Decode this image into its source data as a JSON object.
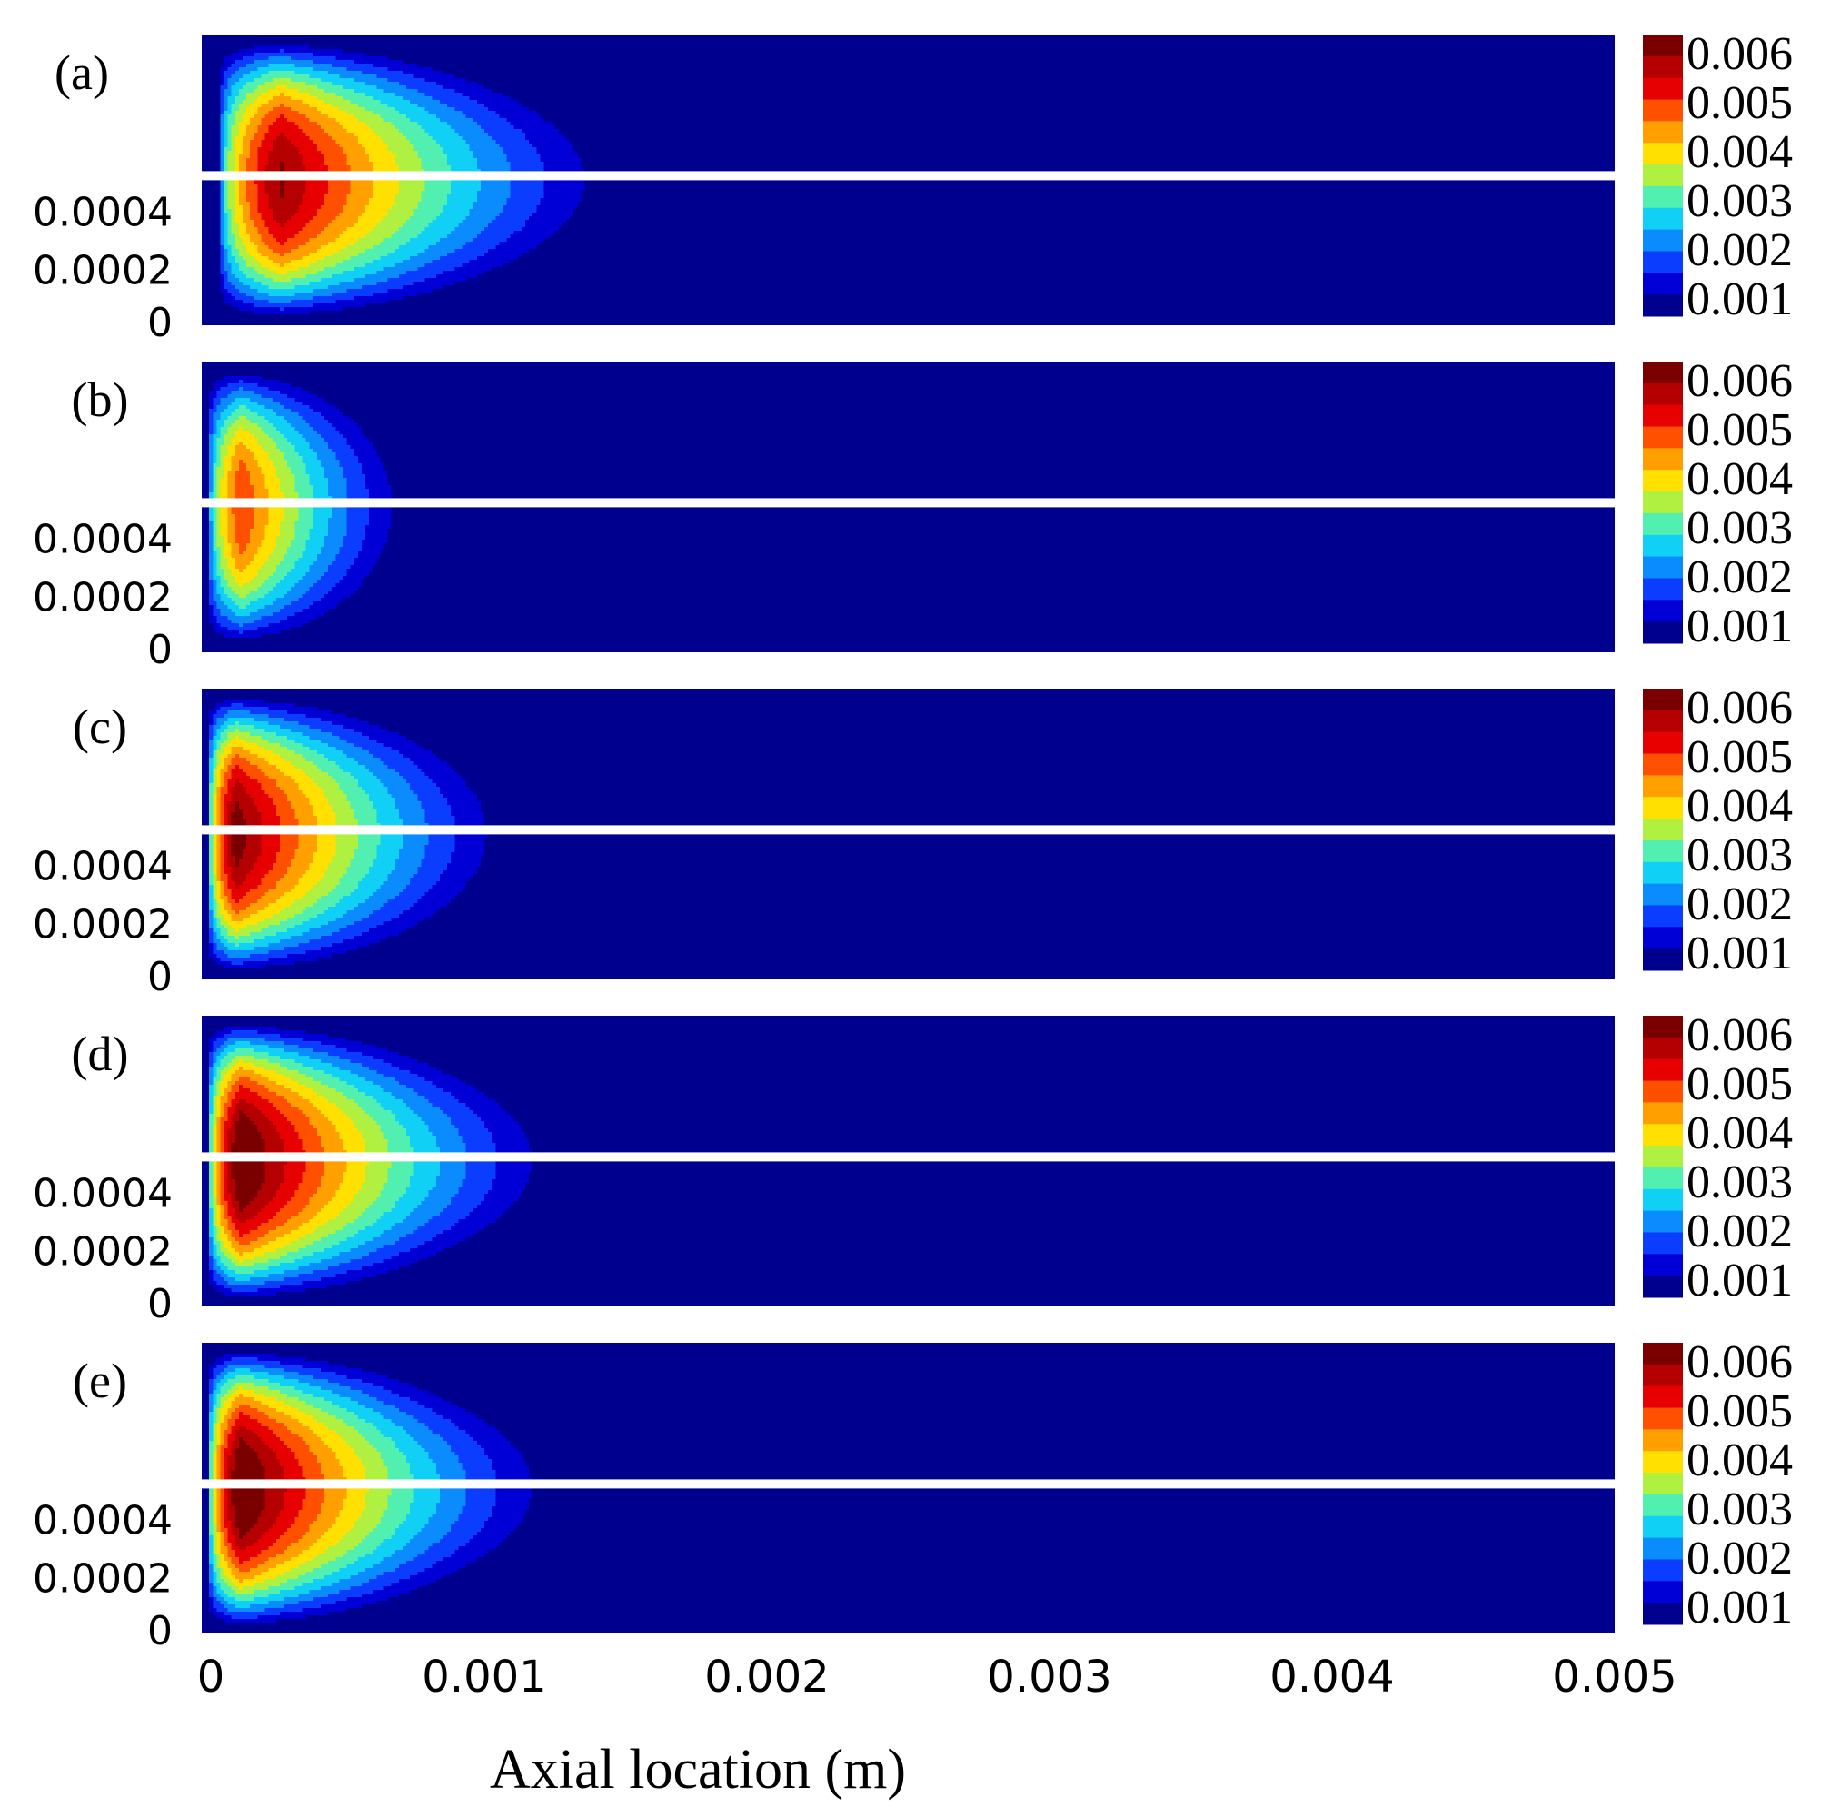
{
  "chart_data": {
    "type": "heatmap",
    "xlabel": "Axial location (m)",
    "x_ticks": [
      "0",
      "0.001",
      "0.002",
      "0.003",
      "0.004",
      "0.005"
    ],
    "xlim": [
      0,
      0.005
    ],
    "y_ticks": [
      "0.0004",
      "0.0002",
      "0"
    ],
    "colorbar_ticks": [
      "0.006",
      "0.005",
      "0.004",
      "0.003",
      "0.002",
      "0.001"
    ],
    "colorbar_levels": [
      0.001,
      0.0015,
      0.002,
      0.0025,
      0.003,
      0.0035,
      0.004,
      0.0045,
      0.005,
      0.0055,
      0.006,
      0.0065
    ],
    "colorbar_colors": [
      "#00008f",
      "#0000d6",
      "#0a3dff",
      "#0a8cff",
      "#10d0f5",
      "#52f0b0",
      "#b0f040",
      "#ffe000",
      "#ffa000",
      "#ff5000",
      "#e60000",
      "#b40000",
      "#7a0000"
    ],
    "panels": [
      {
        "label": "(a)",
        "peak": 0.0066,
        "peak_x": 0.00022,
        "length": 0.00177,
        "bulge": 0.45,
        "front": 6e-05
      },
      {
        "label": "(b)",
        "peak": 0.0055,
        "peak_x": 0.00012,
        "length": 0.00093,
        "bulge": 0.35,
        "front": 2e-05
      },
      {
        "label": "(c)",
        "peak": 0.0068,
        "peak_x": 0.0001,
        "length": 0.00137,
        "bulge": 0.4,
        "front": 2e-05
      },
      {
        "label": "(d)",
        "peak": 0.0072,
        "peak_x": 0.00012,
        "length": 0.00157,
        "bulge": 0.5,
        "front": 2e-05
      },
      {
        "label": "(e)",
        "peak": 0.0072,
        "peak_x": 0.00012,
        "length": 0.00157,
        "bulge": 0.5,
        "front": 2e-05
      }
    ]
  }
}
